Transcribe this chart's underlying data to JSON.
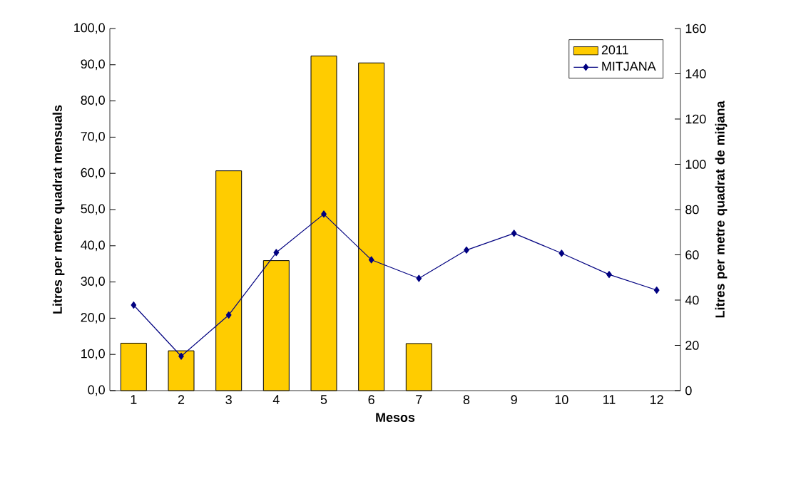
{
  "chart_data": {
    "type": "bar",
    "xlabel": "Mesos",
    "ylabel": "Litres per metre quadrat mensuals",
    "y2label": "Litres per metre quadrat de mitjana",
    "categories": [
      "1",
      "2",
      "3",
      "4",
      "5",
      "6",
      "7",
      "8",
      "9",
      "10",
      "11",
      "12"
    ],
    "series": [
      {
        "name": "2011",
        "color": "#ffcc00",
        "values": [
          13.1,
          11.0,
          60.7,
          35.9,
          92.4,
          90.5,
          13.0,
          null,
          null,
          null,
          null,
          null
        ]
      },
      {
        "name": "MITJANA",
        "type": "line",
        "axis": "y2",
        "color": "#000080",
        "values": [
          37.8,
          15.2,
          33.4,
          61.0,
          78.0,
          57.8,
          49.6,
          62.1,
          69.5,
          60.7,
          51.3,
          44.4
        ]
      }
    ],
    "ylim": [
      0,
      100
    ],
    "yticks": [
      {
        "value": 0,
        "label": "0,0"
      },
      {
        "value": 10,
        "label": "10,0"
      },
      {
        "value": 20,
        "label": "20,0"
      },
      {
        "value": 30,
        "label": "30,0"
      },
      {
        "value": 40,
        "label": "40,0"
      },
      {
        "value": 50,
        "label": "50,0"
      },
      {
        "value": 60,
        "label": "60,0"
      },
      {
        "value": 70,
        "label": "70,0"
      },
      {
        "value": 80,
        "label": "80,0"
      },
      {
        "value": 90,
        "label": "90,0"
      },
      {
        "value": 100,
        "label": "100,0"
      }
    ],
    "y2lim": [
      0,
      160
    ],
    "y2ticks": [
      0,
      20,
      40,
      60,
      80,
      100,
      120,
      140,
      160
    ],
    "marker": "diamond",
    "legend": "top right"
  }
}
